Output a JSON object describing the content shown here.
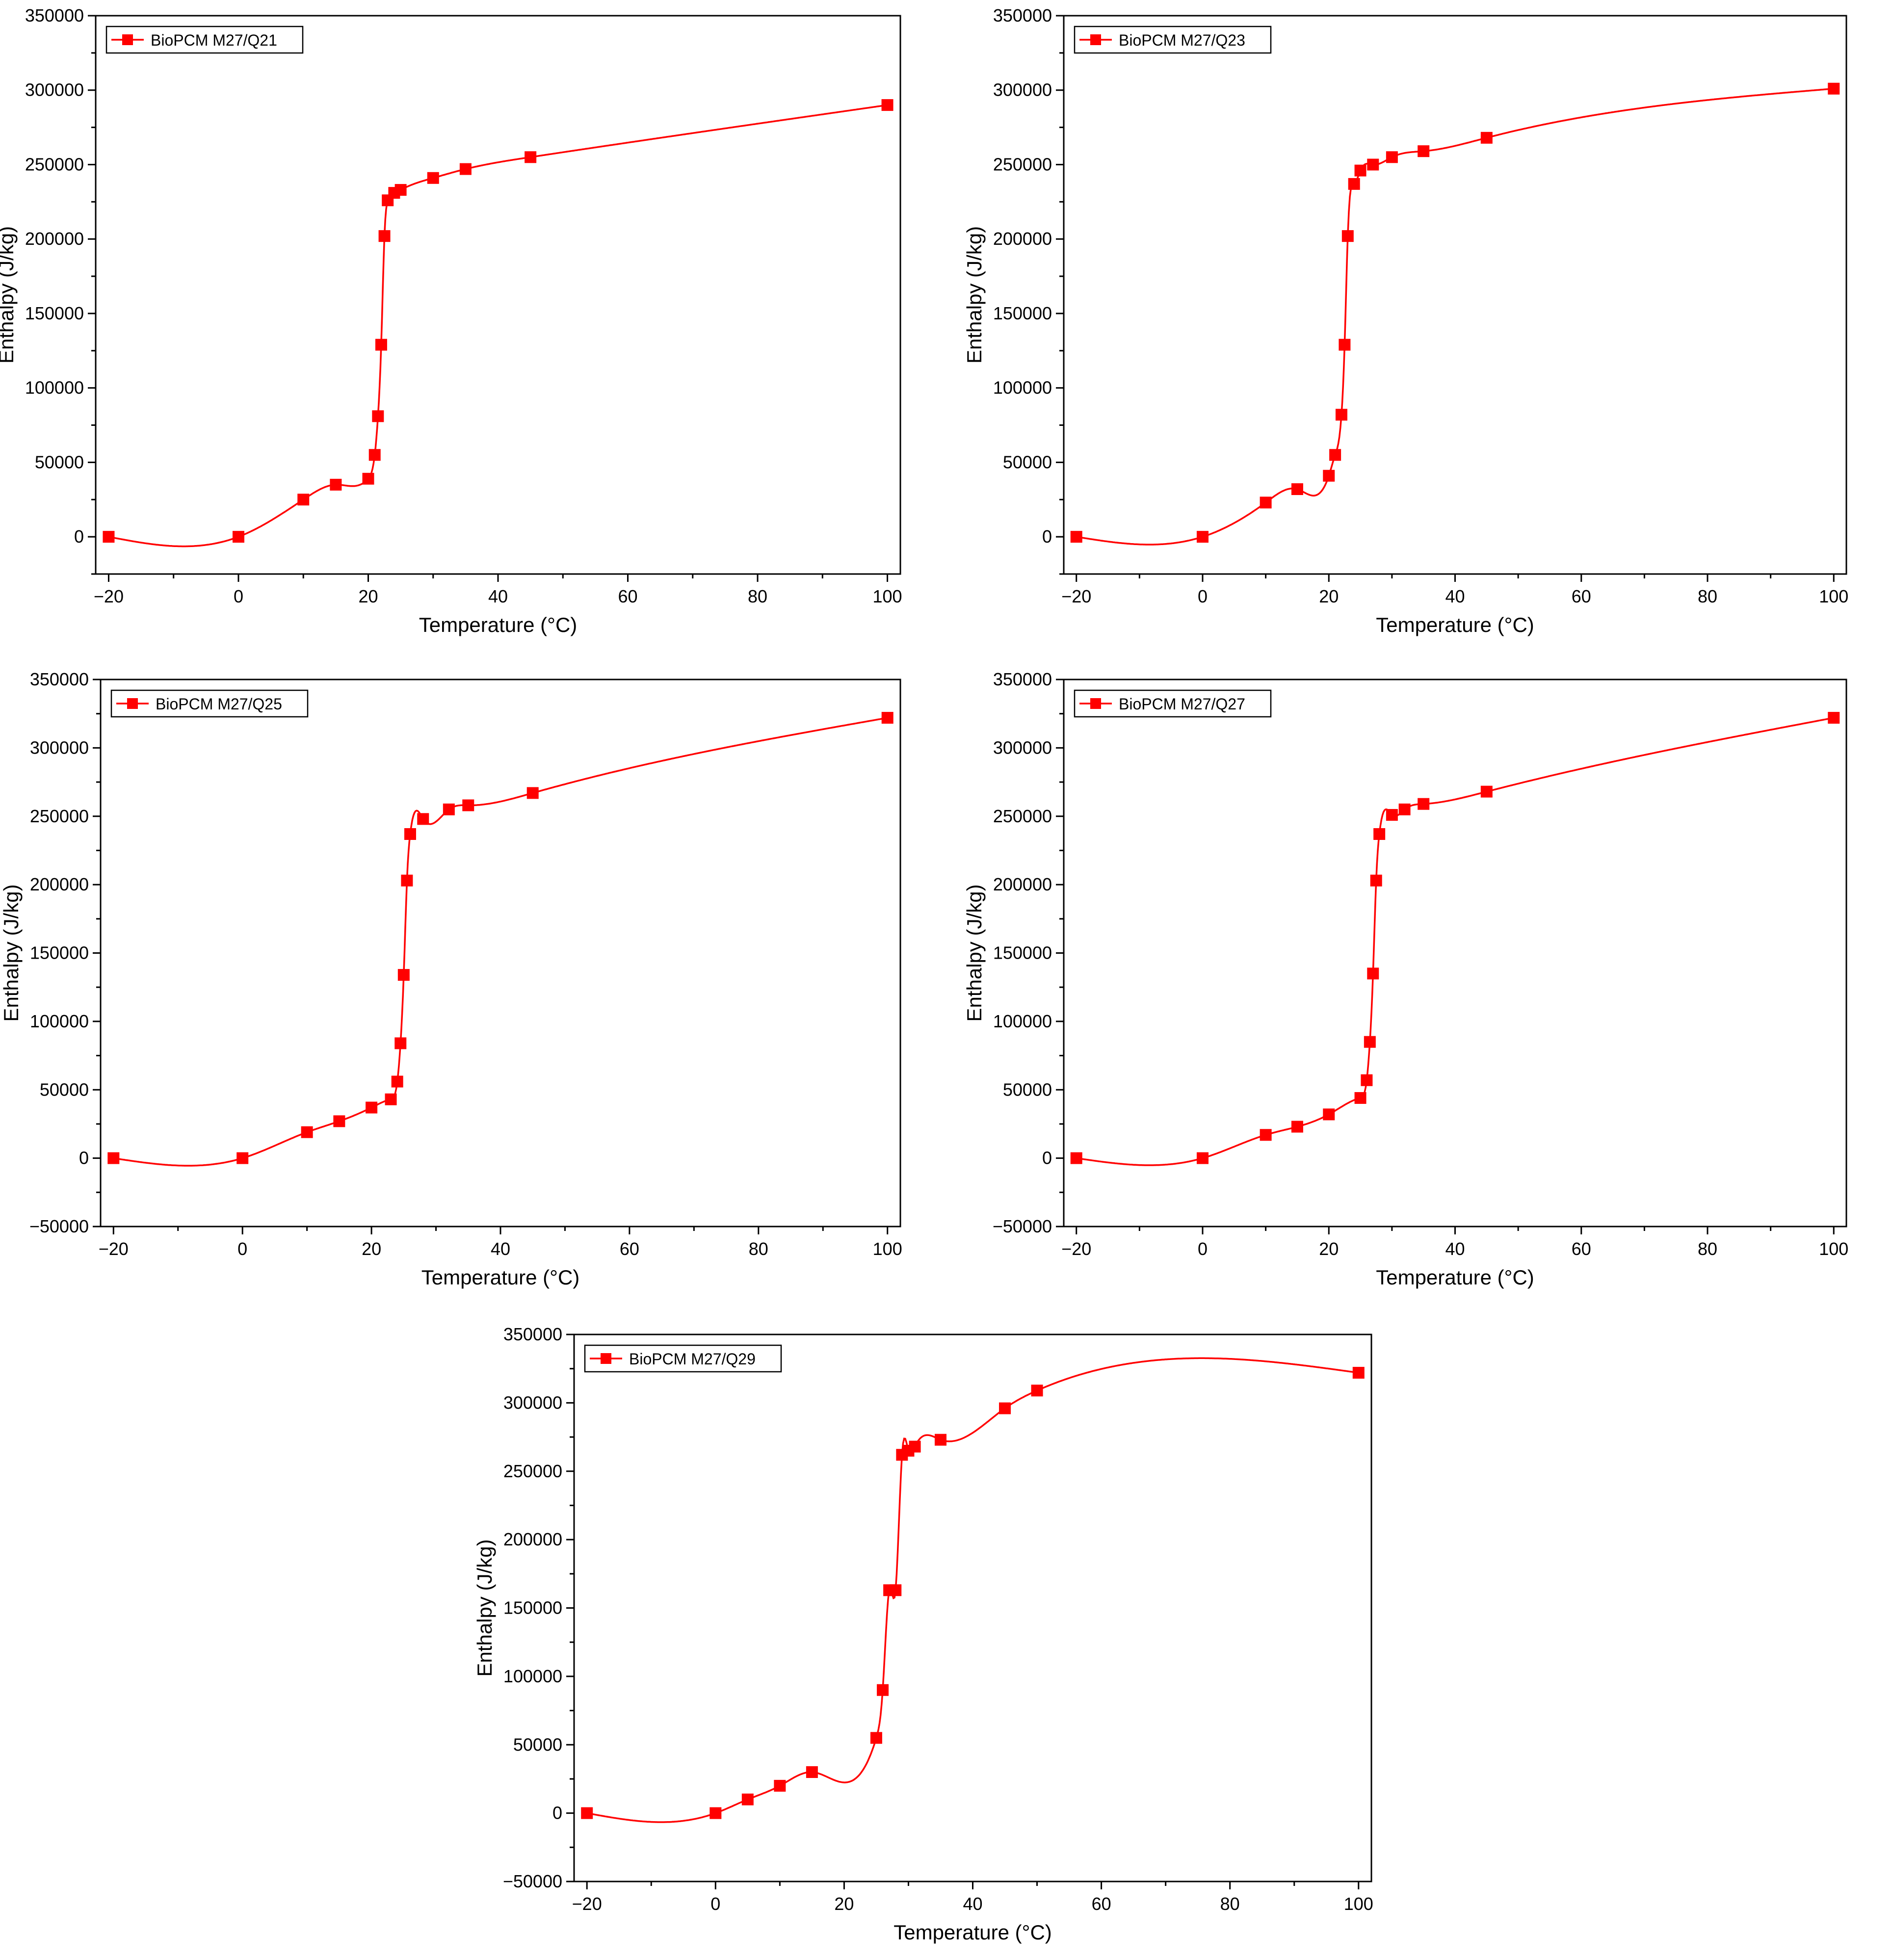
{
  "chart_data": [
    {
      "type": "line",
      "xlabel": "Temperature (°C)",
      "ylabel": "Enthalpy (J/kg)",
      "xlim": [
        -22,
        102
      ],
      "ylim": [
        -25000,
        350000
      ],
      "xticks": [
        -20,
        0,
        20,
        40,
        60,
        80,
        100
      ],
      "xtick_labels": [
        "−20",
        "0",
        "20",
        "40",
        "60",
        "80",
        "100"
      ],
      "yticks": [
        0,
        50000,
        100000,
        150000,
        200000,
        250000,
        300000,
        350000
      ],
      "ytick_labels": [
        "0",
        "50000",
        "100000",
        "150000",
        "200000",
        "250000",
        "300000",
        "350000"
      ],
      "series": [
        {
          "name": "BioPCM M27/Q21",
          "color": "#ff0000",
          "marker": "square",
          "x": [
            -20,
            0,
            10,
            15,
            20,
            21,
            21.5,
            22,
            22.5,
            23,
            24,
            25,
            30,
            35,
            45,
            100
          ],
          "y": [
            0,
            0,
            25000,
            35000,
            39000,
            55000,
            81000,
            129000,
            202000,
            226000,
            231000,
            233000,
            241000,
            247000,
            255000,
            290000
          ]
        }
      ]
    },
    {
      "type": "line",
      "xlabel": "Temperature (°C)",
      "ylabel": "Enthalpy (J/kg)",
      "xlim": [
        -22,
        102
      ],
      "ylim": [
        -25000,
        350000
      ],
      "xticks": [
        -20,
        0,
        20,
        40,
        60,
        80,
        100
      ],
      "xtick_labels": [
        "−20",
        "0",
        "20",
        "40",
        "60",
        "80",
        "100"
      ],
      "yticks": [
        0,
        50000,
        100000,
        150000,
        200000,
        250000,
        300000,
        350000
      ],
      "ytick_labels": [
        "0",
        "50000",
        "100000",
        "150000",
        "200000",
        "250000",
        "300000",
        "350000"
      ],
      "series": [
        {
          "name": "BioPCM M27/Q23",
          "color": "#ff0000",
          "marker": "square",
          "x": [
            -20,
            0,
            10,
            15,
            20,
            21,
            22,
            22.5,
            23,
            24,
            25,
            27,
            30,
            35,
            45,
            100
          ],
          "y": [
            0,
            0,
            23000,
            32000,
            41000,
            55000,
            82000,
            129000,
            202000,
            237000,
            246000,
            250000,
            255000,
            259000,
            268000,
            301000
          ]
        }
      ]
    },
    {
      "type": "line",
      "xlabel": "Temperature (°C)",
      "ylabel": "Enthalpy (J/kg)",
      "xlim": [
        -22,
        102
      ],
      "ylim": [
        -50000,
        350000
      ],
      "xticks": [
        -20,
        0,
        20,
        40,
        60,
        80,
        100
      ],
      "xtick_labels": [
        "−20",
        "0",
        "20",
        "40",
        "60",
        "80",
        "100"
      ],
      "yticks": [
        -50000,
        0,
        50000,
        100000,
        150000,
        200000,
        250000,
        300000,
        350000
      ],
      "ytick_labels": [
        "−50000",
        "0",
        "50000",
        "100000",
        "150000",
        "200000",
        "250000",
        "300000",
        "350000"
      ],
      "series": [
        {
          "name": "BioPCM M27/Q25",
          "color": "#ff0000",
          "marker": "square",
          "x": [
            -20,
            0,
            10,
            15,
            20,
            23,
            24,
            24.5,
            25,
            25.5,
            26,
            28,
            32,
            35,
            45,
            100
          ],
          "y": [
            0,
            0,
            19000,
            27000,
            37000,
            43000,
            56000,
            84000,
            134000,
            203000,
            237000,
            248000,
            255000,
            258000,
            267000,
            322000
          ]
        }
      ]
    },
    {
      "type": "line",
      "xlabel": "Temperature (°C)",
      "ylabel": "Enthalpy (J/kg)",
      "xlim": [
        -22,
        102
      ],
      "ylim": [
        -50000,
        350000
      ],
      "xticks": [
        -20,
        0,
        20,
        40,
        60,
        80,
        100
      ],
      "xtick_labels": [
        "−20",
        "0",
        "20",
        "40",
        "60",
        "80",
        "100"
      ],
      "yticks": [
        -50000,
        0,
        50000,
        100000,
        150000,
        200000,
        250000,
        300000,
        350000
      ],
      "ytick_labels": [
        "−50000",
        "0",
        "50000",
        "100000",
        "150000",
        "200000",
        "250000",
        "300000",
        "350000"
      ],
      "series": [
        {
          "name": "BioPCM M27/Q27",
          "color": "#ff0000",
          "marker": "square",
          "x": [
            -20,
            0,
            10,
            15,
            20,
            25,
            26,
            26.5,
            27,
            27.5,
            28,
            30,
            32,
            35,
            45,
            100
          ],
          "y": [
            0,
            0,
            17000,
            23000,
            32000,
            44000,
            57000,
            85000,
            135000,
            203000,
            237000,
            251000,
            255000,
            259000,
            268000,
            322000
          ]
        }
      ]
    },
    {
      "type": "line",
      "xlabel": "Temperature (°C)",
      "ylabel": "Enthalpy (J/kg)",
      "xlim": [
        -22,
        102
      ],
      "ylim": [
        -50000,
        350000
      ],
      "xticks": [
        -20,
        0,
        20,
        40,
        60,
        80,
        100
      ],
      "xtick_labels": [
        "−20",
        "0",
        "20",
        "40",
        "60",
        "80",
        "100"
      ],
      "yticks": [
        -50000,
        0,
        50000,
        100000,
        150000,
        200000,
        250000,
        300000,
        350000
      ],
      "ytick_labels": [
        "−50000",
        "0",
        "50000",
        "100000",
        "150000",
        "200000",
        "250000",
        "300000",
        "350000"
      ],
      "series": [
        {
          "name": "BioPCM M27/Q29",
          "color": "#ff0000",
          "marker": "square",
          "x": [
            -20,
            0,
            5,
            10,
            15,
            25,
            26,
            27,
            28,
            29,
            30,
            31,
            35,
            45,
            50,
            100
          ],
          "y": [
            0,
            0,
            10000,
            20000,
            30000,
            55000,
            90000,
            163000,
            163000,
            262000,
            265000,
            268000,
            273000,
            296000,
            309000,
            322000
          ]
        }
      ]
    }
  ]
}
